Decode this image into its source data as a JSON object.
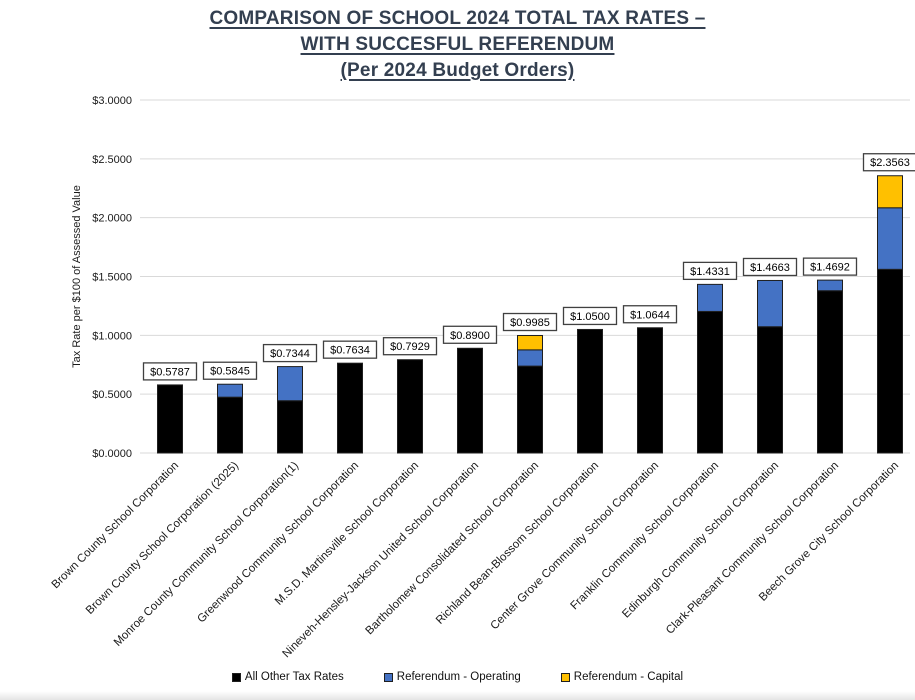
{
  "title": {
    "lines": [
      "COMPARISON OF SCHOOL 2024 TOTAL TAX RATES –",
      "WITH SUCCESFUL REFERENDUM",
      "(Per 2024 Budget Orders)"
    ]
  },
  "colors": {
    "title_text": "#333F50",
    "gridline": "#D9D9D9",
    "axis_text": "#1a1a1a",
    "bar_outline": "#1f1f1f",
    "value_box_border": "#404040",
    "bar_black": "#000000",
    "bar_blue": "#4472C4",
    "bar_gold": "#FFC000"
  },
  "chart_data": {
    "type": "bar",
    "stacked": true,
    "title": "COMPARISON OF SCHOOL 2024 TOTAL TAX RATES – WITH SUCCESFUL REFERENDUM (Per 2024 Budget Orders)",
    "xlabel": "",
    "ylabel": "Tax Rate per $100 of Assessed Value",
    "ylim": [
      0,
      3.0
    ],
    "ytick_step": 0.5,
    "ytick_labels": [
      "$0.0000",
      "$0.5000",
      "$1.0000",
      "$1.5000",
      "$2.0000",
      "$2.5000",
      "$3.0000"
    ],
    "grid": true,
    "legend_position": "bottom",
    "categories": [
      "Brown County School Corporation",
      "Brown County School Corporation (2025)",
      "Monroe County Community School Corporation(1)",
      "Greenwood Community School Corporation",
      "M.S.D. Martinsville School Corporation",
      "Nineveh-Hensley-Jackson United School Corporation",
      "Bartholomew Consolidated School Corporation",
      "Richland Bean-Blossom School Corporation",
      "Center Grove Community School Corporation",
      "Franklin Community School Corporation",
      "Edinburgh Community School Corporation",
      "Clark-Pleasant Community School Corporation",
      "Beech Grove City School Corporation"
    ],
    "series": [
      {
        "name": "All Other Tax Rates",
        "color": "#000000",
        "values": [
          0.5787,
          0.4745,
          0.4444,
          0.7634,
          0.7929,
          0.89,
          0.7385,
          1.05,
          1.0644,
          1.2031,
          1.0733,
          1.3792,
          1.561
        ]
      },
      {
        "name": "Referendum - Operating",
        "color": "#4472C4",
        "values": [
          0,
          0.11,
          0.29,
          0,
          0,
          0,
          0.138,
          0,
          0,
          0.23,
          0.393,
          0.09,
          0.523
        ]
      },
      {
        "name": "Referendum - Capital",
        "color": "#FFC000",
        "values": [
          0,
          0,
          0,
          0,
          0,
          0,
          0.122,
          0,
          0,
          0,
          0,
          0,
          0.2723
        ]
      }
    ],
    "totals": [
      0.5787,
      0.5845,
      0.7344,
      0.7634,
      0.7929,
      0.89,
      0.9985,
      1.05,
      1.0644,
      1.4331,
      1.4663,
      1.4692,
      2.3563
    ],
    "total_labels": [
      "$0.5787",
      "$0.5845",
      "$0.7344",
      "$0.7634",
      "$0.7929",
      "$0.8900",
      "$0.9985",
      "$1.0500",
      "$1.0644",
      "$1.4331",
      "$1.4663",
      "$1.4692",
      "$2.3563"
    ]
  }
}
